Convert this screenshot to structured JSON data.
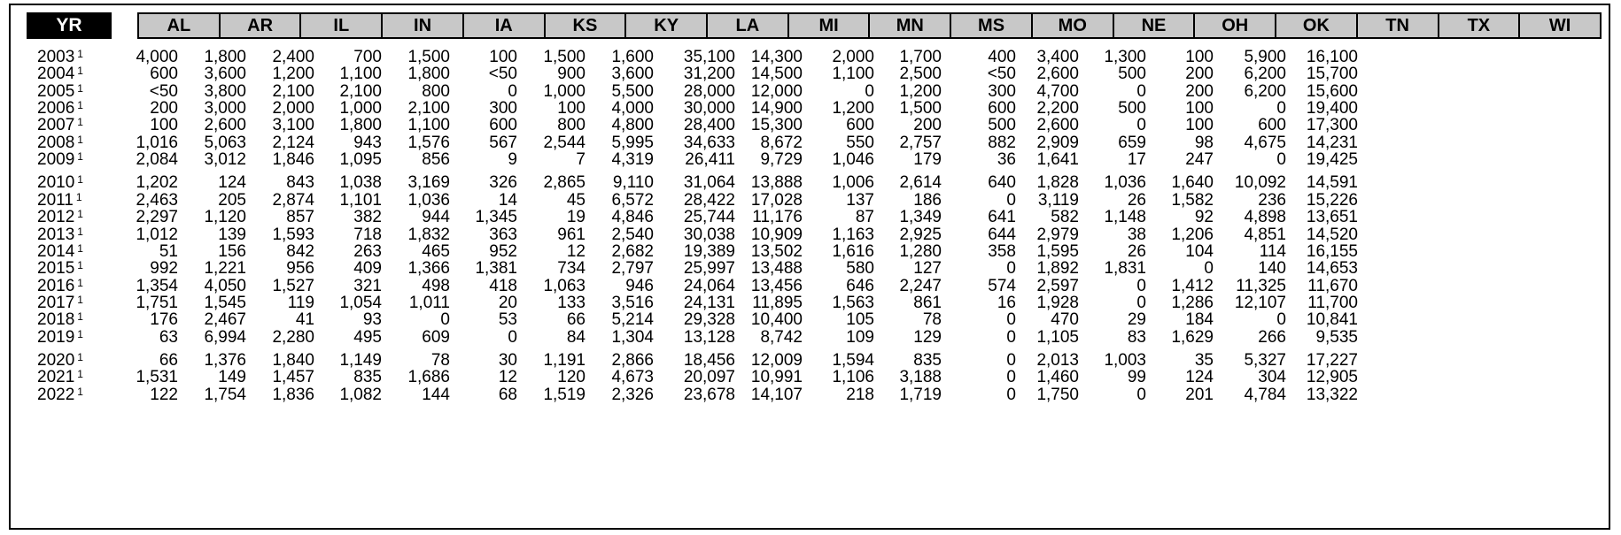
{
  "header": {
    "yr_label": "YR",
    "states": [
      "AL",
      "AR",
      "IL",
      "IN",
      "IA",
      "KS",
      "KY",
      "LA",
      "MI",
      "MN",
      "MS",
      "MO",
      "NE",
      "OH",
      "OK",
      "TN",
      "TX",
      "WI"
    ]
  },
  "footnote_marker": "1",
  "rows": [
    {
      "year": "2003",
      "values": [
        "4,000",
        "1,800",
        "2,400",
        "700",
        "1,500",
        "100",
        "1,500",
        "1,600",
        "35,100",
        "14,300",
        "2,000",
        "1,700",
        "400",
        "3,400",
        "1,300",
        "100",
        "5,900",
        "16,100"
      ]
    },
    {
      "year": "2004",
      "values": [
        "600",
        "3,600",
        "1,200",
        "1,100",
        "1,800",
        "<50",
        "900",
        "3,600",
        "31,200",
        "14,500",
        "1,100",
        "2,500",
        "<50",
        "2,600",
        "500",
        "200",
        "6,200",
        "15,700"
      ]
    },
    {
      "year": "2005",
      "values": [
        "<50",
        "3,800",
        "2,100",
        "2,100",
        "800",
        "0",
        "1,000",
        "5,500",
        "28,000",
        "12,000",
        "0",
        "1,200",
        "300",
        "4,700",
        "0",
        "200",
        "6,200",
        "15,600"
      ]
    },
    {
      "year": "2006",
      "values": [
        "200",
        "3,000",
        "2,000",
        "1,000",
        "2,100",
        "300",
        "100",
        "4,000",
        "30,000",
        "14,900",
        "1,200",
        "1,500",
        "600",
        "2,200",
        "500",
        "100",
        "0",
        "19,400"
      ]
    },
    {
      "year": "2007",
      "values": [
        "100",
        "2,600",
        "3,100",
        "1,800",
        "1,100",
        "600",
        "800",
        "4,800",
        "28,400",
        "15,300",
        "600",
        "200",
        "500",
        "2,600",
        "0",
        "100",
        "600",
        "17,300"
      ]
    },
    {
      "year": "2008",
      "values": [
        "1,016",
        "5,063",
        "2,124",
        "943",
        "1,576",
        "567",
        "2,544",
        "5,995",
        "34,633",
        "8,672",
        "550",
        "2,757",
        "882",
        "2,909",
        "659",
        "98",
        "4,675",
        "14,231"
      ]
    },
    {
      "year": "2009",
      "values": [
        "2,084",
        "3,012",
        "1,846",
        "1,095",
        "856",
        "9",
        "7",
        "4,319",
        "26,411",
        "9,729",
        "1,046",
        "179",
        "36",
        "1,641",
        "17",
        "247",
        "0",
        "19,425"
      ]
    },
    {
      "year": "2010",
      "values": [
        "1,202",
        "124",
        "843",
        "1,038",
        "3,169",
        "326",
        "2,865",
        "9,110",
        "31,064",
        "13,888",
        "1,006",
        "2,614",
        "640",
        "1,828",
        "1,036",
        "1,640",
        "10,092",
        "14,591"
      ]
    },
    {
      "year": "2011",
      "values": [
        "2,463",
        "205",
        "2,874",
        "1,101",
        "1,036",
        "14",
        "45",
        "6,572",
        "28,422",
        "17,028",
        "137",
        "186",
        "0",
        "3,119",
        "26",
        "1,582",
        "236",
        "15,226"
      ]
    },
    {
      "year": "2012",
      "values": [
        "2,297",
        "1,120",
        "857",
        "382",
        "944",
        "1,345",
        "19",
        "4,846",
        "25,744",
        "11,176",
        "87",
        "1,349",
        "641",
        "582",
        "1,148",
        "92",
        "4,898",
        "13,651"
      ]
    },
    {
      "year": "2013",
      "values": [
        "1,012",
        "139",
        "1,593",
        "718",
        "1,832",
        "363",
        "961",
        "2,540",
        "30,038",
        "10,909",
        "1,163",
        "2,925",
        "644",
        "2,979",
        "38",
        "1,206",
        "4,851",
        "14,520"
      ]
    },
    {
      "year": "2014",
      "values": [
        "51",
        "156",
        "842",
        "263",
        "465",
        "952",
        "12",
        "2,682",
        "19,389",
        "13,502",
        "1,616",
        "1,280",
        "358",
        "1,595",
        "26",
        "104",
        "114",
        "16,155"
      ]
    },
    {
      "year": "2015",
      "values": [
        "992",
        "1,221",
        "956",
        "409",
        "1,366",
        "1,381",
        "734",
        "2,797",
        "25,997",
        "13,488",
        "580",
        "127",
        "0",
        "1,892",
        "1,831",
        "0",
        "140",
        "14,653"
      ]
    },
    {
      "year": "2016",
      "values": [
        "1,354",
        "4,050",
        "1,527",
        "321",
        "498",
        "418",
        "1,063",
        "946",
        "24,064",
        "13,456",
        "646",
        "2,247",
        "574",
        "2,597",
        "0",
        "1,412",
        "11,325",
        "11,670"
      ]
    },
    {
      "year": "2017",
      "values": [
        "1,751",
        "1,545",
        "119",
        "1,054",
        "1,011",
        "20",
        "133",
        "3,516",
        "24,131",
        "11,895",
        "1,563",
        "861",
        "16",
        "1,928",
        "0",
        "1,286",
        "12,107",
        "11,700"
      ]
    },
    {
      "year": "2018",
      "values": [
        "176",
        "2,467",
        "41",
        "93",
        "0",
        "53",
        "66",
        "5,214",
        "29,328",
        "10,400",
        "105",
        "78",
        "0",
        "470",
        "29",
        "184",
        "0",
        "10,841"
      ]
    },
    {
      "year": "2019",
      "values": [
        "63",
        "6,994",
        "2,280",
        "495",
        "609",
        "0",
        "84",
        "1,304",
        "13,128",
        "8,742",
        "109",
        "129",
        "0",
        "1,105",
        "83",
        "1,629",
        "266",
        "9,535"
      ]
    },
    {
      "year": "2020",
      "values": [
        "66",
        "1,376",
        "1,840",
        "1,149",
        "78",
        "30",
        "1,191",
        "2,866",
        "18,456",
        "12,009",
        "1,594",
        "835",
        "0",
        "2,013",
        "1,003",
        "35",
        "5,327",
        "17,227"
      ]
    },
    {
      "year": "2021",
      "values": [
        "1,531",
        "149",
        "1,457",
        "835",
        "1,686",
        "12",
        "120",
        "4,673",
        "20,097",
        "10,991",
        "1,106",
        "3,188",
        "0",
        "1,460",
        "99",
        "124",
        "304",
        "12,905"
      ]
    },
    {
      "year": "2022",
      "values": [
        "122",
        "1,754",
        "1,836",
        "1,082",
        "144",
        "68",
        "1,519",
        "2,326",
        "23,678",
        "14,107",
        "218",
        "1,719",
        "0",
        "1,750",
        "0",
        "201",
        "4,784",
        "13,322"
      ]
    }
  ]
}
